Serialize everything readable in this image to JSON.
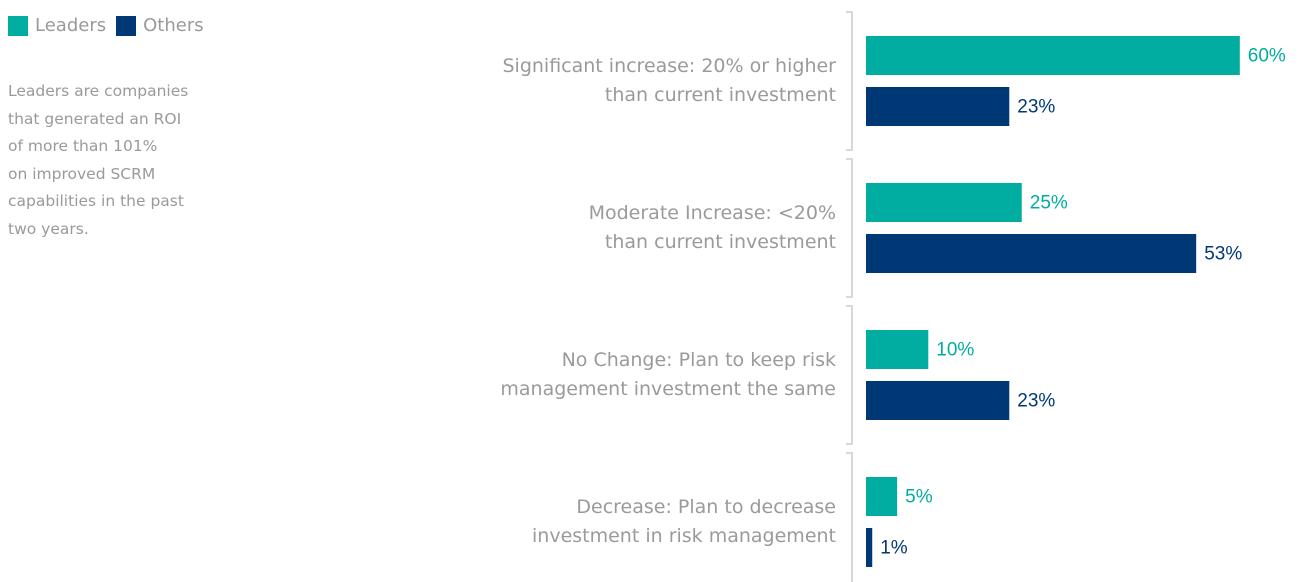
{
  "chart_data": {
    "type": "bar",
    "orientation": "horizontal",
    "annotation": "Leaders are companies\nthat generated an ROI\nof more than 101%\non improved SCRM\ncapabilities in the past\ntwo years.",
    "categories": [
      "Significant increase: 20% or higher\nthan current investment",
      "Moderate Increase: <20%\nthan current investment",
      "No Change: Plan to keep risk\nmanagement investment the same",
      "Decrease: Plan to decrease\ninvestment in risk management"
    ],
    "series": [
      {
        "name": "Leaders",
        "color": "#00ada0",
        "values": [
          60,
          25,
          10,
          5
        ],
        "value_labels": [
          "60%",
          "25%",
          "10%",
          "5%"
        ]
      },
      {
        "name": "Others",
        "color": "#003876",
        "values": [
          23,
          53,
          23,
          1
        ],
        "value_labels": [
          "23%",
          "53%",
          "23%",
          "1%"
        ]
      }
    ]
  }
}
